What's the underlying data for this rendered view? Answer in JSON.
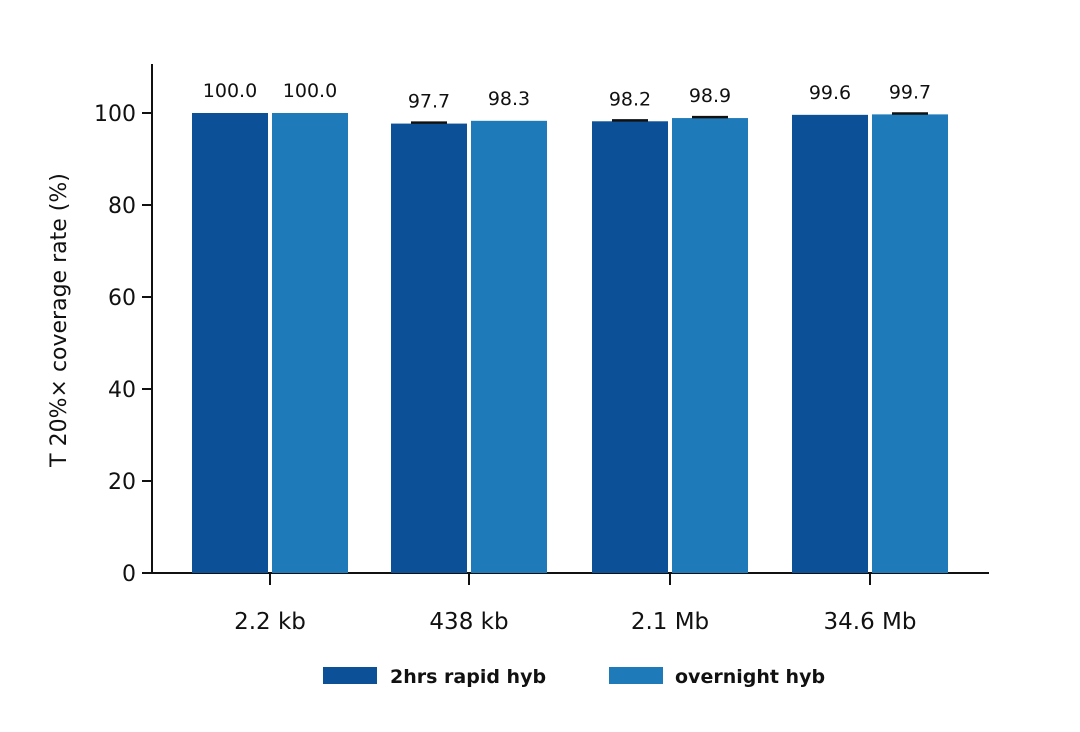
{
  "chart_data": {
    "type": "bar",
    "title": "",
    "xlabel": "",
    "ylabel": "T 20%× coverage rate (%)",
    "ylim": [
      0,
      110
    ],
    "yticks": [
      "0",
      "20",
      "40",
      "60",
      "80",
      "100"
    ],
    "categories": [
      "2.2 kb",
      "438 kb",
      "2.1 Mb",
      "34.6 Mb"
    ],
    "series": [
      {
        "name": "2hrs rapid hyb",
        "color": "#0c5197",
        "values": [
          100.0,
          97.7,
          98.2,
          99.6
        ],
        "labels": [
          "100.0",
          "97.7",
          "98.2",
          "99.6"
        ],
        "errors": [
          0,
          0.2,
          0.2,
          0
        ]
      },
      {
        "name": "overnight hyb",
        "color": "#1f7ab9",
        "values": [
          100.0,
          98.3,
          98.9,
          99.7
        ],
        "labels": [
          "100.0",
          "98.3",
          "98.9",
          "99.7"
        ],
        "errors": [
          0,
          0,
          0.2,
          0.2
        ]
      }
    ],
    "legend_position": "bottom",
    "grid": false
  }
}
